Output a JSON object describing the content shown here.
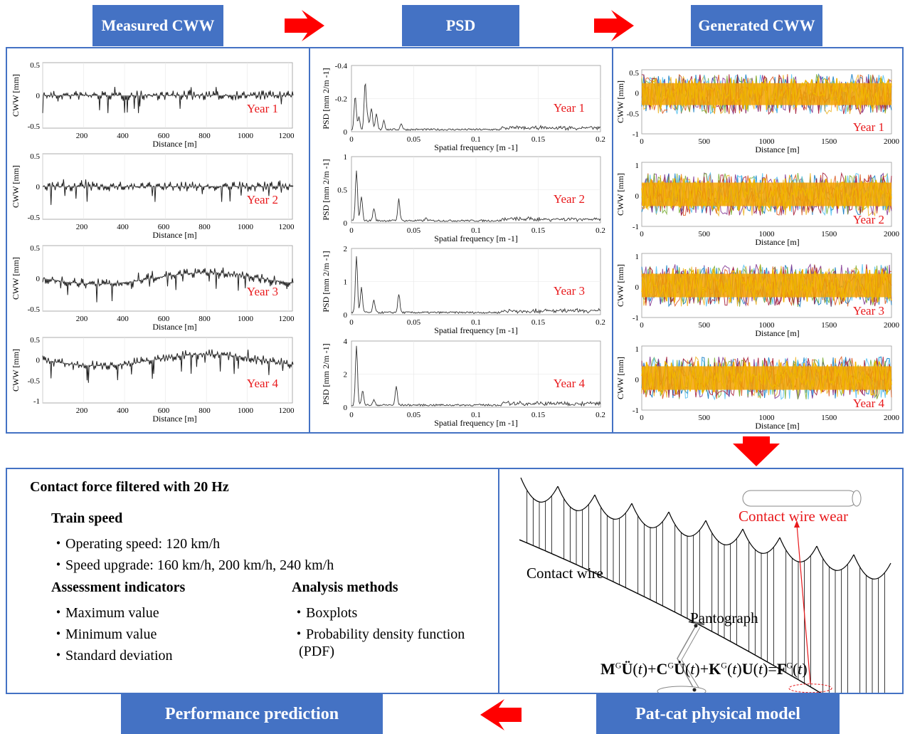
{
  "headers": {
    "measured": "Measured CWW",
    "psd": "PSD",
    "generated": "Generated CWW",
    "performance": "Performance prediction",
    "model": "Pat-cat physical model"
  },
  "colors": {
    "header_blue": "#4472c4",
    "arrow_red": "#ff0000",
    "year_label_red": "#e8191c",
    "generated_fill": "#f5a300"
  },
  "measured": {
    "ylabel": "CWW [mm]",
    "xlabel": "Distance [m]",
    "xticks": [
      "200",
      "400",
      "600",
      "800",
      "1000",
      "1200"
    ],
    "plots": [
      {
        "year": "Year 1",
        "yticks": [
          "0.5",
          "0",
          "-0.5"
        ]
      },
      {
        "year": "Year 2",
        "yticks": [
          "0.5",
          "0",
          "-0.5"
        ]
      },
      {
        "year": "Year 3",
        "yticks": [
          "0.5",
          "0",
          "-0.5"
        ]
      },
      {
        "year": "Year 4",
        "yticks": [
          "0.5",
          "0",
          "-0.5",
          "-1"
        ]
      }
    ]
  },
  "psd": {
    "ylabel": "PSD [mm 2/m -1]",
    "xlabel": "Spatial frequency [m -1]",
    "xticks": [
      "0",
      "0.05",
      "0.1",
      "0.15",
      "0.2"
    ],
    "plots": [
      {
        "year": "Year 1",
        "yticks": [
          "-0.4",
          "-0.2",
          "0"
        ]
      },
      {
        "year": "Year 2",
        "yticks": [
          "1",
          "0.5",
          "0"
        ]
      },
      {
        "year": "Year 3",
        "yticks": [
          "2",
          "1",
          "0"
        ]
      },
      {
        "year": "Year 4",
        "yticks": [
          "4",
          "2",
          "0"
        ]
      }
    ]
  },
  "generated": {
    "ylabel": "CWW [mm]",
    "xlabel": "Distance [m]",
    "xticks": [
      "0",
      "500",
      "1000",
      "1500",
      "2000"
    ],
    "plots": [
      {
        "year": "Year 1",
        "yticks": [
          "0.5",
          "0",
          "-0.5",
          "-1"
        ]
      },
      {
        "year": "Year 2",
        "yticks": [
          "1",
          "0",
          "-1"
        ]
      },
      {
        "year": "Year 3",
        "yticks": [
          "1",
          "0",
          "-1"
        ]
      },
      {
        "year": "Year 4",
        "yticks": [
          "1",
          "0",
          "-1"
        ]
      }
    ]
  },
  "performance": {
    "title": "Contact force filtered with 20 Hz",
    "train_speed_heading": "Train speed",
    "train_speed_items": [
      "・Operating speed: 120 km/h",
      "・Speed upgrade: 160 km/h, 200 km/h, 240 km/h"
    ],
    "indicators_heading": "Assessment indicators",
    "indicators": [
      "・Maximum value",
      "・Minimum value",
      "・Standard deviation"
    ],
    "methods_heading": "Analysis methods",
    "methods": [
      "・Boxplots",
      "・Probability density function",
      "(PDF)"
    ]
  },
  "model": {
    "contact_wire_label": "Contact wire",
    "wear_label": "Contact wire wear",
    "pantograph_label": "Pantograph",
    "equation": "MGÜ(t)+CGU̇(t)+KG(t)U(t)=FG(t)"
  }
}
